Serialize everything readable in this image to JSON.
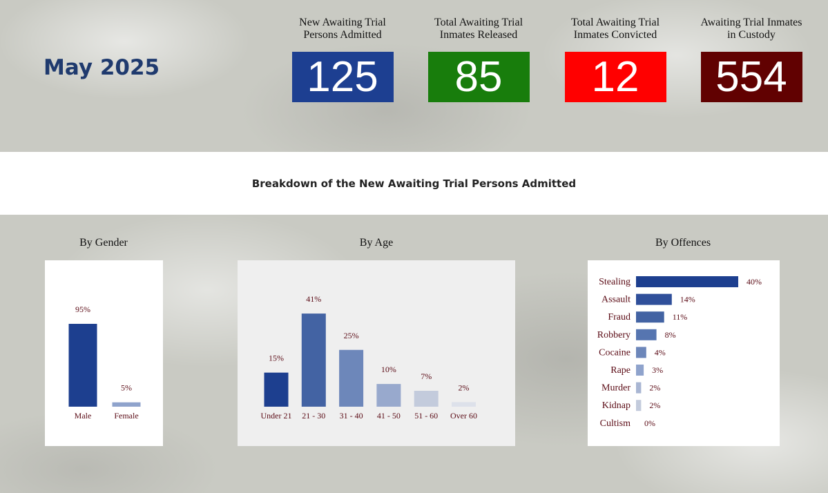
{
  "header": {
    "month": "May 2025"
  },
  "stats": [
    {
      "label": "New Awaiting Trial Persons Admitted",
      "line1": "New Awaiting Trial",
      "line2": "Persons Admitted",
      "value": "125",
      "color": "#1d3f91"
    },
    {
      "label": "Total Awaiting Trial Inmates Released",
      "line1": "Total Awaiting Trial",
      "line2": "Inmates Released",
      "value": "85",
      "color": "#187d0c"
    },
    {
      "label": "Total Awaiting Trial Inmates Convicted",
      "line1": "Total Awaiting Trial",
      "line2": "Inmates Convicted",
      "value": "12",
      "color": "#ff0000"
    },
    {
      "label": "Awaiting Trial Inmates in Custody",
      "line1": "Awaiting Trial Inmates",
      "line2": "in Custody",
      "value": "554",
      "color": "#610101"
    }
  ],
  "breakdown_title": "Breakdown of the New Awaiting Trial Persons Admitted",
  "sections": {
    "gender": "By Gender",
    "age": "By Age",
    "offences": "By Offences"
  },
  "chart_data": [
    {
      "type": "bar",
      "title": "By Gender",
      "categories": [
        "Male",
        "Female"
      ],
      "values": [
        95,
        5
      ],
      "labels": [
        "95%",
        "5%"
      ],
      "colors": [
        "#1d3f8f",
        "#8fa3cc"
      ],
      "unit": "%"
    },
    {
      "type": "bar",
      "title": "By Age",
      "categories": [
        "Under 21",
        "21 - 30",
        "31 - 40",
        "41 - 50",
        "51 - 60",
        "Over 60"
      ],
      "values": [
        15,
        41,
        25,
        10,
        7,
        2
      ],
      "labels": [
        "15%",
        "41%",
        "25%",
        "10%",
        "7%",
        "2%"
      ],
      "colors": [
        "#1d3f8f",
        "#4363a3",
        "#6d87ba",
        "#98a9cd",
        "#c3cbdc",
        "#dde1ea"
      ],
      "unit": "%"
    },
    {
      "type": "bar",
      "orientation": "horizontal",
      "title": "By Offences",
      "categories": [
        "Stealing",
        "Assault",
        "Fraud",
        "Robbery",
        "Cocaine",
        "Rape",
        "Murder",
        "Kidnap",
        "Cultism"
      ],
      "values": [
        40,
        14,
        11,
        8,
        4,
        3,
        2,
        2,
        0
      ],
      "labels": [
        "40%",
        "14%",
        "11%",
        "8%",
        "4%",
        "3%",
        "2%",
        "2%",
        "0%"
      ],
      "colors": [
        "#1d3f8f",
        "#2f4f9a",
        "#4363a3",
        "#5675b0",
        "#6d87ba",
        "#8fa3cc",
        "#a9b6d3",
        "#c3cbdc",
        "#dde1ea"
      ],
      "unit": "%"
    }
  ]
}
